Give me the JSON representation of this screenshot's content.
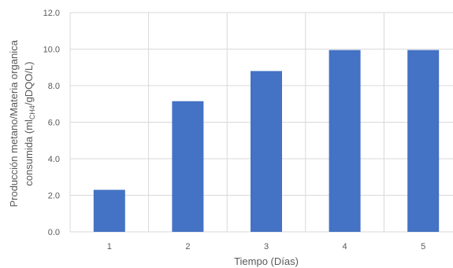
{
  "chart_data": {
    "type": "bar",
    "categories": [
      "1",
      "2",
      "3",
      "4",
      "5"
    ],
    "values": [
      2.3,
      7.15,
      8.8,
      9.95,
      9.95
    ],
    "xlabel": "Tiempo (Días)",
    "ylabel_line1": "Producción metano/Materia organica",
    "ylabel_line2_prefix": "consumida (ml",
    "ylabel_line2_sub": "CH4",
    "ylabel_line2_suffix": "/gDQO/L)",
    "ylim": [
      0,
      12
    ],
    "ytick_step": 2,
    "ytick_labels": [
      "0.0",
      "2.0",
      "4.0",
      "6.0",
      "8.0",
      "10.0",
      "12.0"
    ],
    "bar_color": "#4472C4",
    "grid": true,
    "grid_color": "#D9D9D9"
  }
}
